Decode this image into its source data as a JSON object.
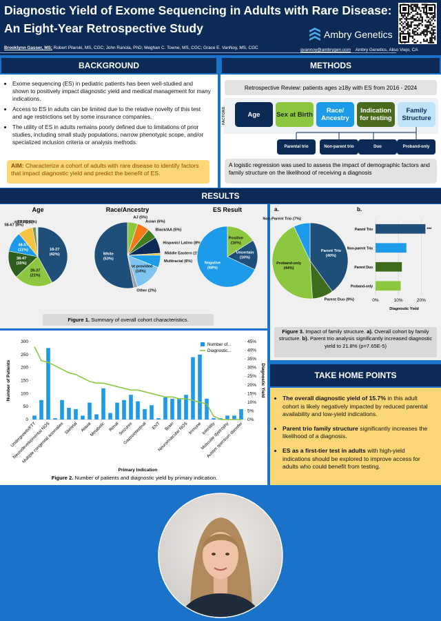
{
  "header": {
    "title": [
      "Diagnostic Yield of Exome Sequencing in Adults with Rare Disease:",
      "An Eight-Year Retrospective Study"
    ],
    "presenter": "Brooklynn Gasser, MS;",
    "authors": "Robert Pilarski, MS, CGC; John Ranola, PhD; Meghan C. Towne, MS, CGC; Grace E. VanNoy, MS, CGC",
    "email": "gvannoy@ambrygen.com",
    "affiliation": "Ambry Genetics, Aliso Viejo, CA",
    "logo": "Ambry Genetics"
  },
  "background": {
    "heading": "BACKGROUND",
    "bullets": [
      "Exome sequencing (ES) in pediatric patients has been well-studied and shown to positively impact diagnostic yield and medical management for many indications.",
      "Access to ES in adults can be limited due to the relative novelty of this test and age restrictions set by some insurance companies.",
      "The utility of ES in adults remains poorly defined due to limitations of prior studies, including small study populations, narrow phenotypic scope, and/or specialized inclusion criteria or analysis methods."
    ],
    "aim": [
      "AIM:",
      " Characterize a cohort of adults with rare disease to identify factors that impact diagnostic yield and predict the benefit of ES."
    ]
  },
  "methods": {
    "heading": "METHODS",
    "review": "Retrospective Review: patients ages ≥18y with ES from 2016 - 2024",
    "factors_label": "FACTORS",
    "factors": [
      "Age",
      "Sex at Birth",
      "Race/ Ancestry",
      "Indication for testing",
      "Family Structure"
    ],
    "family_types": [
      "Parental trio",
      "Non-parent trio",
      "Duo",
      "Proband-only"
    ],
    "analysis": "A logistic regression was used to assess the impact of demographic factors and family structure on the likelihood of receiving a diagnosis"
  },
  "results": {
    "heading": "RESULTS",
    "figure1_caption": [
      "Figure 1.",
      " Summary of overall cohort characteristics."
    ],
    "figure2_caption": [
      "Figure 2.",
      " Number of patients and diagnostic yield by primary indication."
    ],
    "figure3_caption": [
      "Figure 3.",
      " Impact of family structure. ",
      "a).",
      " Overall cohort by family structure. ",
      "b).",
      " Parent trio analysis significantly increased diagnostic yield to 21.8% (p=7.65E-5)"
    ]
  },
  "take_home": {
    "heading": "TAKE HOME POINTS",
    "points": [
      [
        "The overall diagnostic yield of 15.7%",
        " in this adult cohort is likely negatively impacted by reduced parental availability and low-yield indications."
      ],
      [
        "Parent trio family structure",
        " significantly increases the likelihood of a diagnosis."
      ],
      [
        "ES as a first-tier test in adults",
        " with high-yield indications should be explored to improve access for adults who could benefit from testing."
      ]
    ]
  },
  "chart_data": [
    {
      "type": "pie",
      "title": "Age",
      "categories": [
        "18-27",
        "28-37",
        "38-47",
        "48-57",
        "58-67",
        "68-77",
        "78-88"
      ],
      "values": [
        42,
        21,
        15,
        11,
        8,
        2,
        1
      ],
      "value_labels": [
        "(42%)",
        "(21%)",
        "(15%)",
        "(11%)",
        "(8%)",
        "(2%)",
        "(1%)"
      ],
      "colors": [
        "#1f4e79",
        "#8dc63f",
        "#2e5e1e",
        "#1e9be8",
        "#f5c242",
        "#7a9a5a",
        "#cfe3f2"
      ]
    },
    {
      "type": "pie",
      "title": "Race/Ancestry",
      "categories": [
        "AJ",
        "Asian",
        "Black/AA",
        "Hispanic/ Latino",
        "Middle Eastern",
        "Multiracial",
        "Not provided",
        "Other",
        "White"
      ],
      "values": [
        5,
        6,
        5,
        8,
        1,
        6,
        14,
        2,
        53
      ],
      "value_labels": [
        "(5%)",
        "(6%)",
        "(5%)",
        "(8%)",
        "(1%)",
        "(6%)",
        "(14%)",
        "(2%)",
        "(53%)"
      ],
      "colors": [
        "#8dc63f",
        "#f07a1a",
        "#3f7d20",
        "#0b2a55",
        "#e8c23a",
        "#1e9be8",
        "#7fc4ef",
        "#9aa5b1",
        "#1f4e79"
      ]
    },
    {
      "type": "pie",
      "title": "ES Result",
      "categories": [
        "Positive",
        "Uncertain",
        "Negative"
      ],
      "values": [
        16,
        16,
        68
      ],
      "value_labels": [
        "(16%)",
        "(16%)",
        "(68%)"
      ],
      "colors": [
        "#8dc63f",
        "#1f4e79",
        "#1e9be8"
      ]
    },
    {
      "type": "pie",
      "panel_label": "a.",
      "categories": [
        "Parent Trio",
        "Parent Duo",
        "Proband-only",
        "Non-Parent Trio"
      ],
      "values": [
        40,
        9,
        44,
        7
      ],
      "value_labels": [
        "(40%)",
        "(9%)",
        "(44%)",
        "(7%)"
      ],
      "colors": [
        "#1f4e79",
        "#3f6b1e",
        "#8dc63f",
        "#1e9be8"
      ]
    },
    {
      "type": "hbar",
      "panel_label": "b.",
      "categories": [
        "Parent Trio",
        "Non-parent Trio",
        "Parent Duo",
        "Proband-only"
      ],
      "values": [
        21.8,
        13.5,
        11.5,
        11
      ],
      "colors": [
        "#1f4e79",
        "#1e9be8",
        "#3f6b1e",
        "#8dc63f"
      ],
      "xlim": [
        0,
        25
      ],
      "xticks": [
        {
          "value": 0,
          "label": "0%"
        },
        {
          "value": 10,
          "label": "10%"
        },
        {
          "value": 20,
          "label": "20%"
        }
      ],
      "xlabel": "Diagnostic Yield",
      "annotation": "***",
      "grid": true
    },
    {
      "type": "bar_line",
      "categories": [
        "Undergrowth/FTT",
        null,
        "Neurodevelopmental NOS",
        null,
        "Multiple congenital anomalies",
        null,
        "Skeletal",
        null,
        "Ataxia",
        null,
        "Metabolic",
        null,
        "Renal",
        null,
        "Seizures",
        null,
        "Gastrointestinal",
        null,
        "ENT",
        null,
        "Brain",
        null,
        "Neuromuscular NOS",
        null,
        "Immune",
        null,
        "Infertility",
        null,
        "Muscular dystrophy",
        null,
        "Autism spectrum disorder"
      ],
      "series": [
        {
          "name": "Number of...",
          "color": "#1e9be8",
          "values": [
            15,
            75,
            275,
            5,
            75,
            45,
            40,
            15,
            65,
            20,
            120,
            25,
            65,
            75,
            95,
            70,
            40,
            55,
            5,
            85,
            80,
            80,
            95,
            240,
            250,
            80,
            5,
            5,
            15,
            15,
            40
          ]
        },
        {
          "name": "Diagnostic...",
          "color": "#8dc63f",
          "axis": "y2",
          "values": [
            42,
            34,
            33,
            31,
            29,
            27,
            26,
            24,
            22,
            21,
            21,
            20,
            19,
            18,
            17,
            17,
            16,
            15,
            14,
            13,
            13,
            12,
            12,
            11,
            10,
            9,
            2,
            0,
            0,
            0,
            0
          ]
        }
      ],
      "ylim": [
        0,
        300
      ],
      "yticks": [
        0,
        50,
        100,
        150,
        200,
        250,
        300
      ],
      "y2lim": [
        0,
        45
      ],
      "y2ticks": [
        {
          "value": 0,
          "label": "0%"
        },
        {
          "value": 5,
          "label": "5%"
        },
        {
          "value": 10,
          "label": "10%"
        },
        {
          "value": 15,
          "label": "15%"
        },
        {
          "value": 20,
          "label": "20%"
        },
        {
          "value": 25,
          "label": "25%"
        },
        {
          "value": 30,
          "label": "30%"
        },
        {
          "value": 35,
          "label": "35%"
        },
        {
          "value": 40,
          "label": "40%"
        },
        {
          "value": 45,
          "label": "45%"
        }
      ],
      "ylabel": "Number of Patients",
      "y2label": "Diagnostic Yield",
      "xlabel": "Primary Indication"
    }
  ]
}
